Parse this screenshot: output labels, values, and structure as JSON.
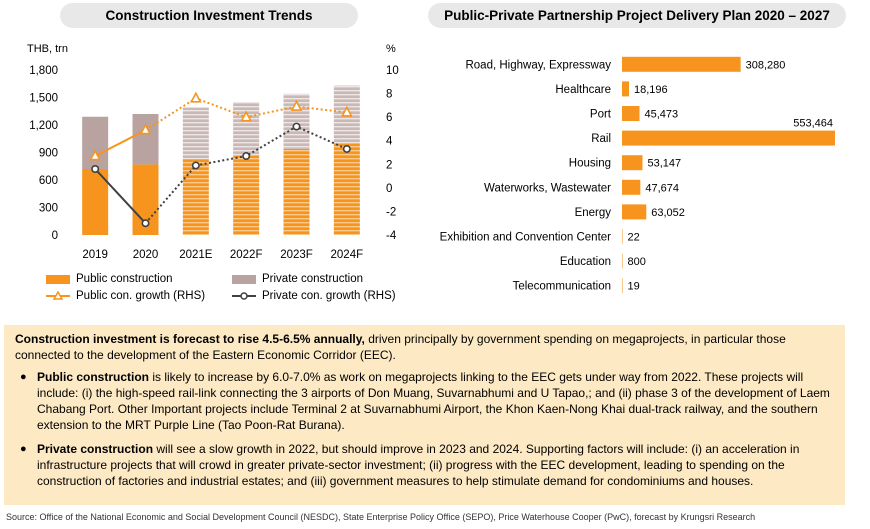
{
  "titles": {
    "left": "Construction Investment Trends",
    "right": "Public-Private Partnership Project Delivery Plan 2020 – 2027"
  },
  "chart_data": [
    {
      "type": "bar",
      "stacked": true,
      "categories": [
        "2019",
        "2020",
        "2021E",
        "2022F",
        "2023F",
        "2024F"
      ],
      "ylabel": "THB, trn",
      "y2label": "%",
      "ylim": [
        0,
        1800
      ],
      "yticks": [
        0,
        300,
        600,
        900,
        1200,
        1500,
        1800
      ],
      "yticklabels": [
        "0",
        "300",
        "600",
        "900",
        "1,200",
        "1,500",
        "1,800"
      ],
      "y2lim": [
        -4,
        10
      ],
      "y2ticks": [
        -4,
        -2,
        0,
        2,
        4,
        6,
        8,
        10
      ],
      "legend_position": "bottom",
      "series": [
        {
          "name": "Public construction",
          "kind": "bar",
          "color": "#f7941d",
          "values": [
            720,
            770,
            830,
            870,
            940,
            1000
          ]
        },
        {
          "name": "Private construction",
          "kind": "bar",
          "color": "#b8a3a0",
          "values": [
            570,
            550,
            560,
            580,
            600,
            630
          ]
        },
        {
          "name": "Public con. growth (RHS)",
          "kind": "line",
          "axis": "right",
          "color": "#f7941d",
          "values": [
            2.7,
            4.9,
            7.6,
            6.0,
            6.9,
            6.4
          ]
        },
        {
          "name": "Private con. growth (RHS)",
          "kind": "line",
          "axis": "right",
          "color": "#404040",
          "values": [
            1.6,
            -3.0,
            1.9,
            2.7,
            5.2,
            3.3
          ]
        }
      ]
    },
    {
      "type": "bar",
      "orientation": "horizontal",
      "color": "#f7941d",
      "categories": [
        "Road, Highway, Expressway",
        "Healthcare",
        "Port",
        "Rail",
        "Housing",
        "Waterworks, Wastewater",
        "Energy",
        "Exhibition and Convention Center",
        "Education",
        "Telecommunication"
      ],
      "values": [
        308280,
        18196,
        45473,
        553464,
        53147,
        47674,
        63052,
        22,
        800,
        19
      ],
      "value_labels": [
        "308,280",
        "18,196",
        "45,473",
        "553,464",
        "53,147",
        "47,674",
        "63,052",
        "22",
        "800",
        "19"
      ]
    }
  ],
  "summary": {
    "lead_bold": "Construction investment is forecast to rise 4.5-6.5% annually,",
    "lead_rest": " driven principally by government spending on megaprojects, in particular those connected to the development of the Eastern Economic Corridor (EEC).",
    "bullets": [
      {
        "bold": "Public construction",
        "text": " is likely to increase by 6.0-7.0% as work on megaprojects linking to the EEC gets under way from 2022. These projects will include: (i) the high-speed rail-link connecting the 3 airports of Don Muang, Suvarnabhumi and U Tapao,; and (ii) phase 3 of the development of Laem Chabang Port. Other Important projects include Terminal 2 at Suvarnabhumi Airport, the Khon Kaen-Nong Khai dual-track railway, and the southern extension to the MRT Purple Line (Tao Poon-Rat Burana)."
      },
      {
        "bold": "Private construction",
        "text": " will see a slow growth in 2022, but should improve in 2023 and 2024. Supporting factors will include: (i) an acceleration in infrastructure projects that will crowd in greater private-sector investment; (ii) progress with the EEC development, leading to spending on the construction of factories and industrial estates; and (iii) government measures to help stimulate demand for condominiums and houses."
      }
    ]
  },
  "source": "Source: Office of the National Economic and Social Development Council (NESDC), State Enterprise Policy Office (SEPO), Price Waterhouse Cooper (PwC), forecast by Krungsri Research"
}
